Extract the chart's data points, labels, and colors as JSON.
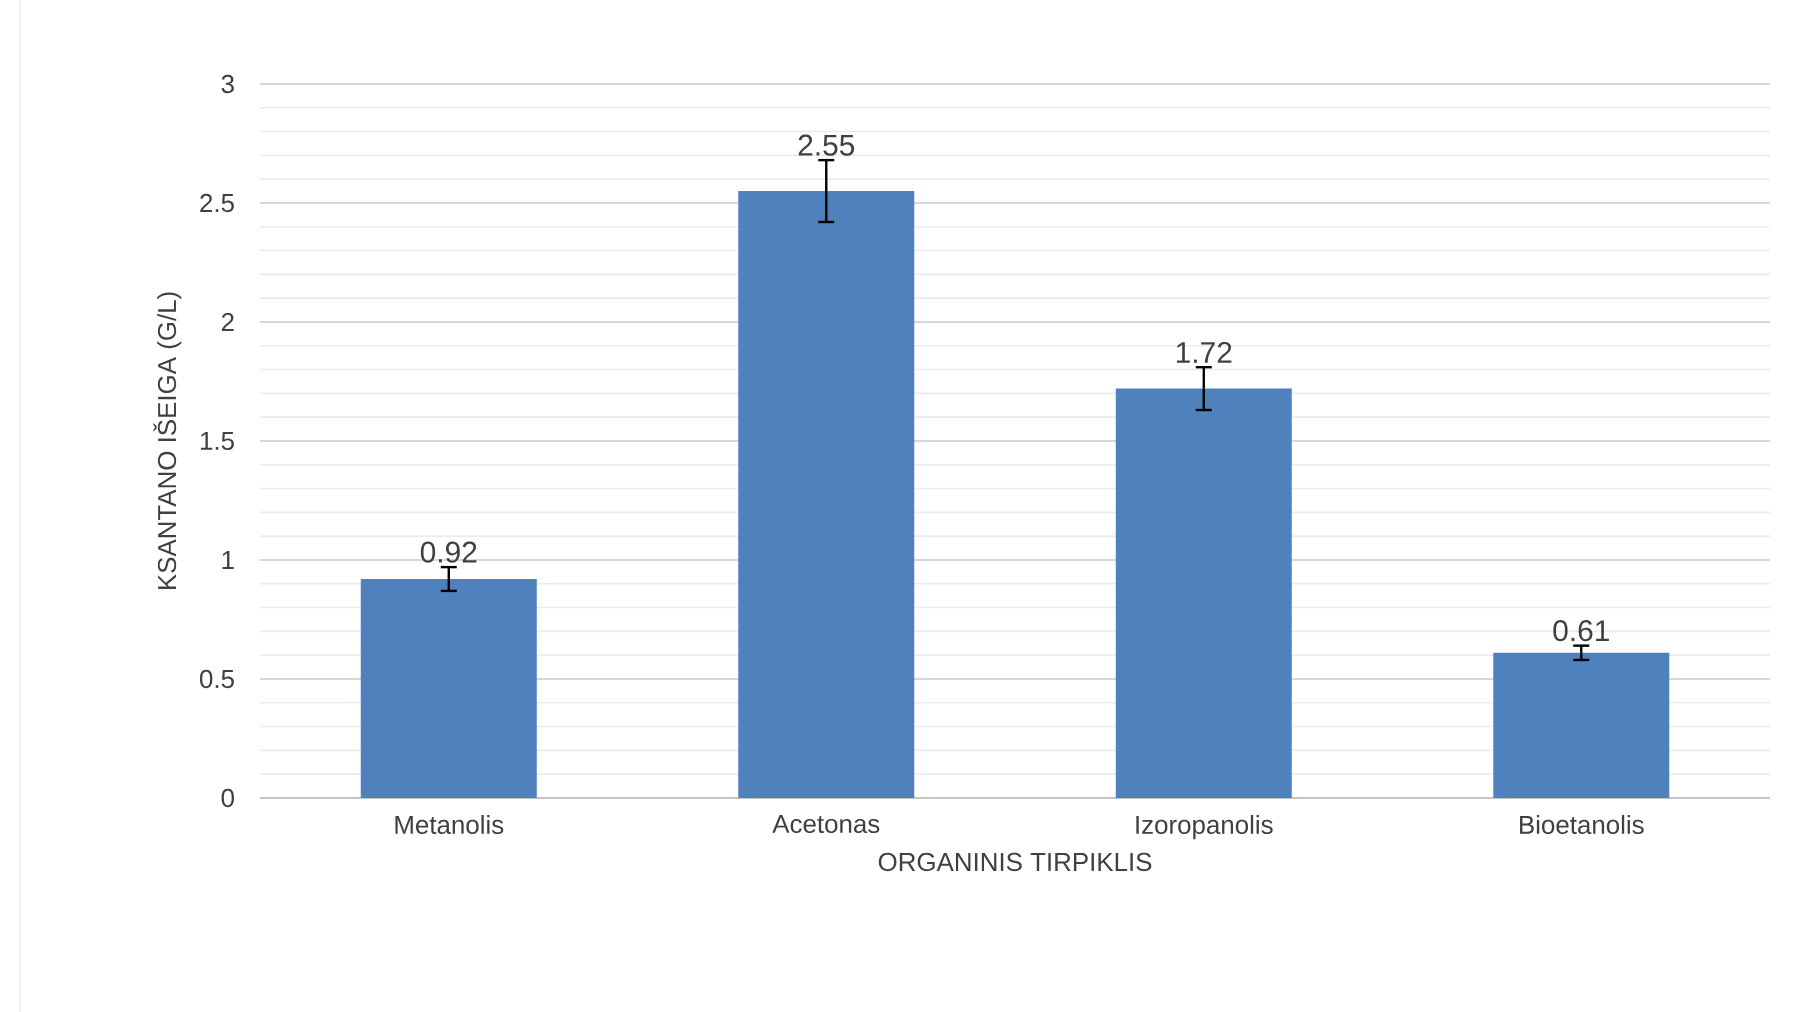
{
  "chart_data": {
    "type": "bar",
    "xlabel": "ORGANINIS TIRPIKLIS",
    "ylabel": "KSANTANO IŠEIGA (G/L)",
    "categories": [
      "Metanolis",
      "Acetonas",
      "Izoropanolis",
      "Bioetanolis"
    ],
    "values": [
      0.92,
      2.55,
      1.72,
      0.61
    ],
    "errors": [
      0.05,
      0.13,
      0.09,
      0.03
    ],
    "color": "#4f81bd",
    "ylim": [
      0,
      3
    ],
    "yticks": [
      0,
      0.5,
      1,
      1.5,
      2,
      2.5,
      3
    ],
    "grid": "y",
    "data_labels": true
  }
}
